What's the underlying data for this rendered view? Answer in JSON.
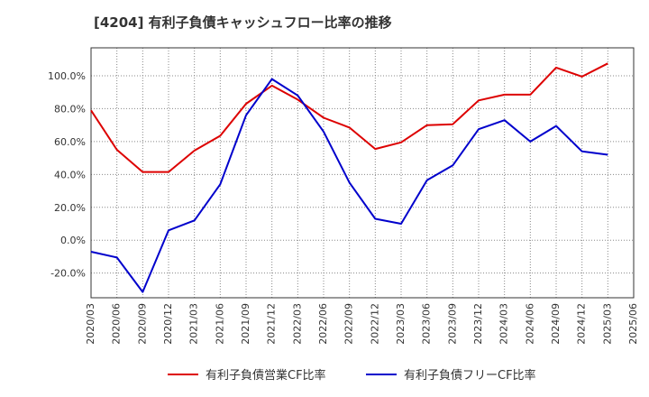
{
  "chart_data": {
    "type": "line",
    "title": "[4204]  有利子負債キャッシュフロー比率の推移",
    "xlabel": "",
    "ylabel": "",
    "categories": [
      "2020/03",
      "2020/06",
      "2020/09",
      "2020/12",
      "2021/03",
      "2021/06",
      "2021/09",
      "2021/12",
      "2022/03",
      "2022/06",
      "2022/09",
      "2022/12",
      "2023/03",
      "2023/06",
      "2023/09",
      "2023/12",
      "2024/03",
      "2024/06",
      "2024/09",
      "2024/12",
      "2025/03",
      "2025/06"
    ],
    "yticks": [
      "-20.0%",
      "0.0%",
      "20.0%",
      "40.0%",
      "60.0%",
      "80.0%",
      "100.0%"
    ],
    "ylim": [
      -35,
      117
    ],
    "grid": true,
    "legend_position": "bottom",
    "colors": {
      "series1": "#dd0000",
      "series2": "#0000cc"
    },
    "series": [
      {
        "name": "有利子負債営業CF比率",
        "values": [
          79,
          55,
          41.5,
          41.5,
          54.5,
          63.5,
          83,
          94,
          85.5,
          74.5,
          68.5,
          55.5,
          59.5,
          70,
          70.5,
          85,
          88.5,
          88.5,
          105,
          99.5,
          107.5,
          null
        ]
      },
      {
        "name": "有利子負債フリーCF比率",
        "values": [
          -7,
          -10.5,
          -31.5,
          6,
          12,
          34,
          76,
          98,
          88,
          66,
          35,
          13,
          10,
          36.5,
          45.5,
          67.5,
          73,
          60,
          69.5,
          54,
          52,
          null
        ]
      }
    ]
  }
}
